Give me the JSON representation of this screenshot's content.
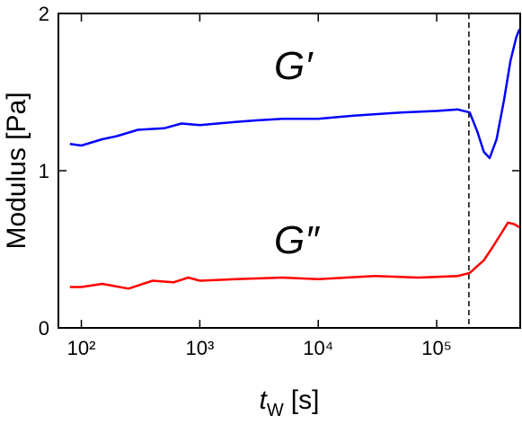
{
  "chart_data": {
    "type": "line",
    "ylabel": "Modulus [Pa]",
    "xlabel_var": "t",
    "xlabel_sub": "W",
    "xlabel_unit": "[s]",
    "log_x": true,
    "xlim": [
      64,
      507000
    ],
    "ylim": [
      0,
      2
    ],
    "xticks": [
      {
        "value": 100,
        "label": "10²"
      },
      {
        "value": 1000,
        "label": "10³"
      },
      {
        "value": 10000,
        "label": "10⁴"
      },
      {
        "value": 100000,
        "label": "10⁵"
      }
    ],
    "yticks": [
      0,
      1,
      2
    ],
    "vline": 187000,
    "series": [
      {
        "name": "G′",
        "color": "#0000ff",
        "x": [
          80,
          100,
          150,
          200,
          300,
          500,
          700,
          1000,
          2000,
          3000,
          5000,
          10000,
          20000,
          50000,
          100000,
          150000,
          190000,
          220000,
          250000,
          280000,
          320000,
          370000,
          420000,
          470000,
          500000
        ],
        "values": [
          1.17,
          1.16,
          1.2,
          1.22,
          1.26,
          1.27,
          1.3,
          1.29,
          1.31,
          1.32,
          1.33,
          1.33,
          1.35,
          1.37,
          1.38,
          1.39,
          1.37,
          1.25,
          1.12,
          1.08,
          1.2,
          1.45,
          1.7,
          1.85,
          1.9
        ]
      },
      {
        "name": "G″",
        "color": "#ff0000",
        "x": [
          80,
          100,
          150,
          250,
          400,
          600,
          800,
          1000,
          2000,
          5000,
          10000,
          30000,
          70000,
          150000,
          190000,
          250000,
          300000,
          350000,
          400000,
          450000,
          500000
        ],
        "values": [
          0.26,
          0.26,
          0.28,
          0.25,
          0.3,
          0.29,
          0.32,
          0.3,
          0.31,
          0.32,
          0.31,
          0.33,
          0.32,
          0.33,
          0.35,
          0.43,
          0.52,
          0.6,
          0.67,
          0.66,
          0.64
        ]
      }
    ]
  }
}
